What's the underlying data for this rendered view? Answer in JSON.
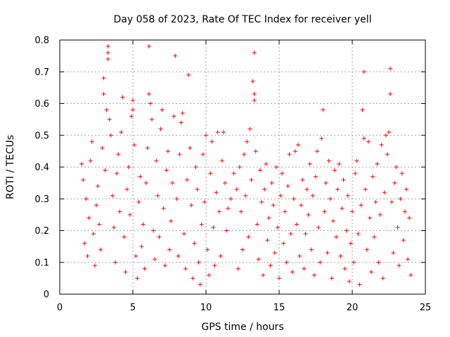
{
  "chart_data": {
    "type": "scatter",
    "title": "Day 058 of 2023, Rate Of TEC Index for receiver yell",
    "xlabel": "GPS time / hours",
    "ylabel": "ROTI / TECUs",
    "xlim": [
      0,
      25
    ],
    "ylim": [
      0,
      0.8
    ],
    "x_ticks": [
      "0",
      "5",
      "10",
      "15",
      "20",
      "25"
    ],
    "y_ticks": [
      "0",
      "0.1",
      "0.2",
      "0.3",
      "0.4",
      "0.5",
      "0.6",
      "0.7",
      "0.8"
    ],
    "grid": true,
    "marker": "+",
    "marker_color": "#ff0000",
    "series": [
      {
        "name": "ROTI",
        "points": [
          [
            1.5,
            0.41
          ],
          [
            1.6,
            0.36
          ],
          [
            1.7,
            0.16
          ],
          [
            1.8,
            0.3
          ],
          [
            1.9,
            0.12
          ],
          [
            2.0,
            0.24
          ],
          [
            2.1,
            0.42
          ],
          [
            2.2,
            0.48
          ],
          [
            2.3,
            0.19
          ],
          [
            2.4,
            0.09
          ],
          [
            2.5,
            0.28
          ],
          [
            2.6,
            0.34
          ],
          [
            2.7,
            0.22
          ],
          [
            2.8,
            0.14
          ],
          [
            2.9,
            0.46
          ],
          [
            3.0,
            0.68
          ],
          [
            3.0,
            0.63
          ],
          [
            3.1,
            0.39
          ],
          [
            3.2,
            0.58
          ],
          [
            3.3,
            0.78
          ],
          [
            3.3,
            0.76
          ],
          [
            3.3,
            0.74
          ],
          [
            3.4,
            0.55
          ],
          [
            3.5,
            0.5
          ],
          [
            3.6,
            0.31
          ],
          [
            3.7,
            0.21
          ],
          [
            3.8,
            0.1
          ],
          [
            3.9,
            0.38
          ],
          [
            4.0,
            0.44
          ],
          [
            4.1,
            0.26
          ],
          [
            4.2,
            0.51
          ],
          [
            4.3,
            0.62
          ],
          [
            4.4,
            0.18
          ],
          [
            4.5,
            0.07
          ],
          [
            4.6,
            0.33
          ],
          [
            4.7,
            0.4
          ],
          [
            4.8,
            0.25
          ],
          [
            4.9,
            0.56
          ],
          [
            5.0,
            0.61
          ],
          [
            5.0,
            0.58
          ],
          [
            5.1,
            0.47
          ],
          [
            5.2,
            0.12
          ],
          [
            5.3,
            0.05
          ],
          [
            5.4,
            0.29
          ],
          [
            5.5,
            0.37
          ],
          [
            5.6,
            0.15
          ],
          [
            5.7,
            0.22
          ],
          [
            5.8,
            0.08
          ],
          [
            5.9,
            0.35
          ],
          [
            6.0,
            0.46
          ],
          [
            6.1,
            0.78
          ],
          [
            6.1,
            0.63
          ],
          [
            6.2,
            0.6
          ],
          [
            6.3,
            0.55
          ],
          [
            6.4,
            0.2
          ],
          [
            6.5,
            0.11
          ],
          [
            6.6,
            0.42
          ],
          [
            6.7,
            0.31
          ],
          [
            6.8,
            0.18
          ],
          [
            6.9,
            0.52
          ],
          [
            7.0,
            0.58
          ],
          [
            7.1,
            0.27
          ],
          [
            7.2,
            0.09
          ],
          [
            7.3,
            0.39
          ],
          [
            7.4,
            0.45
          ],
          [
            7.5,
            0.14
          ],
          [
            7.6,
            0.23
          ],
          [
            7.7,
            0.35
          ],
          [
            7.8,
            0.56
          ],
          [
            7.9,
            0.75
          ],
          [
            8.0,
            0.3
          ],
          [
            8.1,
            0.12
          ],
          [
            8.2,
            0.44
          ],
          [
            8.3,
            0.54
          ],
          [
            8.4,
            0.57
          ],
          [
            8.5,
            0.19
          ],
          [
            8.6,
            0.08
          ],
          [
            8.7,
            0.36
          ],
          [
            8.8,
            0.69
          ],
          [
            8.9,
            0.46
          ],
          [
            9.0,
            0.28
          ],
          [
            9.1,
            0.05
          ],
          [
            9.2,
            0.16
          ],
          [
            9.3,
            0.4
          ],
          [
            9.4,
            0.33
          ],
          [
            9.5,
            0.1
          ],
          [
            9.6,
            0.03
          ],
          [
            9.7,
            0.22
          ],
          [
            9.8,
            0.44
          ],
          [
            9.9,
            0.29
          ],
          [
            10.0,
            0.5
          ],
          [
            10.1,
            0.14
          ],
          [
            10.2,
            0.06
          ],
          [
            10.3,
            0.38
          ],
          [
            10.4,
            0.48
          ],
          [
            10.5,
            0.21
          ],
          [
            10.6,
            0.09
          ],
          [
            10.7,
            0.32
          ],
          [
            10.8,
            0.51
          ],
          [
            10.9,
            0.26
          ],
          [
            11.0,
            0.12
          ],
          [
            11.1,
            0.42
          ],
          [
            11.2,
            0.51
          ],
          [
            11.3,
            0.35
          ],
          [
            11.4,
            0.2
          ],
          [
            11.5,
            0.27
          ],
          [
            11.7,
            0.3
          ],
          [
            11.9,
            0.38
          ],
          [
            12.1,
            0.33
          ],
          [
            12.2,
            0.08
          ],
          [
            12.3,
            0.4
          ],
          [
            12.4,
            0.26
          ],
          [
            12.5,
            0.14
          ],
          [
            12.6,
            0.44
          ],
          [
            12.7,
            0.31
          ],
          [
            12.8,
            0.48
          ],
          [
            12.9,
            0.18
          ],
          [
            13.0,
            0.52
          ],
          [
            13.1,
            0.36
          ],
          [
            13.2,
            0.67
          ],
          [
            13.3,
            0.76
          ],
          [
            13.3,
            0.63
          ],
          [
            13.3,
            0.61
          ],
          [
            13.4,
            0.45
          ],
          [
            13.5,
            0.22
          ],
          [
            13.6,
            0.11
          ],
          [
            13.7,
            0.39
          ],
          [
            13.8,
            0.29
          ],
          [
            13.9,
            0.06
          ],
          [
            14.0,
            0.33
          ],
          [
            14.1,
            0.41
          ],
          [
            14.2,
            0.17
          ],
          [
            14.3,
            0.24
          ],
          [
            14.4,
            0.09
          ],
          [
            14.5,
            0.35
          ],
          [
            14.6,
            0.28
          ],
          [
            14.7,
            0.13
          ],
          [
            14.8,
            0.4
          ],
          [
            14.9,
            0.21
          ],
          [
            15.0,
            0.05
          ],
          [
            15.1,
            0.31
          ],
          [
            15.2,
            0.38
          ],
          [
            15.3,
            0.16
          ],
          [
            15.4,
            0.26
          ],
          [
            15.5,
            0.1
          ],
          [
            15.6,
            0.34
          ],
          [
            15.7,
            0.44
          ],
          [
            15.8,
            0.19
          ],
          [
            15.9,
            0.07
          ],
          [
            16.0,
            0.3
          ],
          [
            16.1,
            0.45
          ],
          [
            16.2,
            0.22
          ],
          [
            16.3,
            0.47
          ],
          [
            16.4,
            0.12
          ],
          [
            16.5,
            0.28
          ],
          [
            16.6,
            0.36
          ],
          [
            16.7,
            0.08
          ],
          [
            16.8,
            0.19
          ],
          [
            16.9,
            0.33
          ],
          [
            17.0,
            0.25
          ],
          [
            17.1,
            0.41
          ],
          [
            17.2,
            0.14
          ],
          [
            17.3,
            0.31
          ],
          [
            17.4,
            0.06
          ],
          [
            17.5,
            0.37
          ],
          [
            17.6,
            0.45
          ],
          [
            17.7,
            0.21
          ],
          [
            17.8,
            0.1
          ],
          [
            17.9,
            0.49
          ],
          [
            18.0,
            0.58
          ],
          [
            18.1,
            0.26
          ],
          [
            18.2,
            0.35
          ],
          [
            18.3,
            0.13
          ],
          [
            18.4,
            0.42
          ],
          [
            18.5,
            0.3
          ],
          [
            18.6,
            0.05
          ],
          [
            18.7,
            0.23
          ],
          [
            18.8,
            0.39
          ],
          [
            18.9,
            0.18
          ],
          [
            19.0,
            0.33
          ],
          [
            19.1,
            0.41
          ],
          [
            19.2,
            0.12
          ],
          [
            19.3,
            0.27
          ],
          [
            19.4,
            0.36
          ],
          [
            19.5,
            0.08
          ],
          [
            19.6,
            0.2
          ],
          [
            19.7,
            0.31
          ],
          [
            19.8,
            0.04
          ],
          [
            19.9,
            0.16
          ],
          [
            20.0,
            0.26
          ],
          [
            20.1,
            0.1
          ],
          [
            20.2,
            0.38
          ],
          [
            20.3,
            0.42
          ],
          [
            20.4,
            0.19
          ],
          [
            20.5,
            0.03
          ],
          [
            20.6,
            0.28
          ],
          [
            20.7,
            0.58
          ],
          [
            20.8,
            0.7
          ],
          [
            20.8,
            0.49
          ],
          [
            20.9,
            0.33
          ],
          [
            21.0,
            0.14
          ],
          [
            21.1,
            0.48
          ],
          [
            21.2,
            0.24
          ],
          [
            21.3,
            0.07
          ],
          [
            21.4,
            0.37
          ],
          [
            21.5,
            0.18
          ],
          [
            21.6,
            0.29
          ],
          [
            21.7,
            0.41
          ],
          [
            21.8,
            0.1
          ],
          [
            21.9,
            0.25
          ],
          [
            22.0,
            0.47
          ],
          [
            22.1,
            0.05
          ],
          [
            22.2,
            0.32
          ],
          [
            22.3,
            0.5
          ],
          [
            22.4,
            0.44
          ],
          [
            22.5,
            0.51
          ],
          [
            22.6,
            0.71
          ],
          [
            22.6,
            0.63
          ],
          [
            22.7,
            0.29
          ],
          [
            22.8,
            0.13
          ],
          [
            22.9,
            0.35
          ],
          [
            23.0,
            0.4
          ],
          [
            23.1,
            0.21
          ],
          [
            23.2,
            0.09
          ],
          [
            23.3,
            0.3
          ],
          [
            23.4,
            0.38
          ],
          [
            23.5,
            0.17
          ],
          [
            23.6,
            0.26
          ],
          [
            23.7,
            0.33
          ],
          [
            23.8,
            0.11
          ],
          [
            23.9,
            0.24
          ],
          [
            24.0,
            0.06
          ]
        ]
      }
    ]
  }
}
